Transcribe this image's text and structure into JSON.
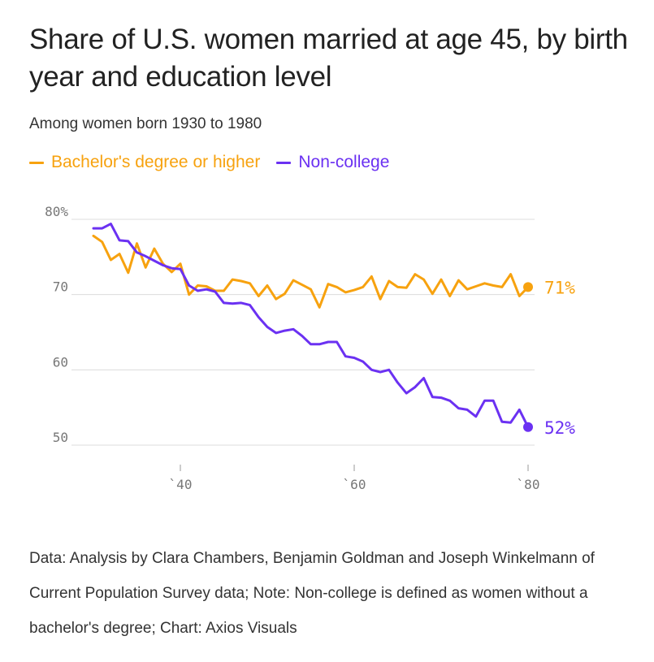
{
  "header": {
    "title": "Share of U.S. women married at age 45, by birth year and education level",
    "subtitle": "Among women born 1930 to 1980"
  },
  "legend": [
    {
      "label": "Bachelor's degree or higher",
      "color": "#f7a20f"
    },
    {
      "label": "Non-college",
      "color": "#6b31f2"
    }
  ],
  "source_note": "Data: Analysis by Clara Chambers, Benjamin Goldman and Joseph Winkelmann of Current Population Survey data; Note: Non-college is defined as women without a bachelor's degree; Chart: Axios Visuals",
  "chart_data": {
    "type": "line",
    "title": "Share of U.S. women married at age 45, by birth year and education level",
    "xlabel": "",
    "ylabel": "",
    "xlim": [
      1930,
      1980
    ],
    "ylim": [
      48,
      82
    ],
    "y_ticks": [
      {
        "value": 50,
        "label": "50"
      },
      {
        "value": 60,
        "label": "60"
      },
      {
        "value": 70,
        "label": "70"
      },
      {
        "value": 80,
        "label": "80%"
      }
    ],
    "x_ticks": [
      {
        "value": 1940,
        "label": "`40"
      },
      {
        "value": 1960,
        "label": "`60"
      },
      {
        "value": 1980,
        "label": "`80"
      }
    ],
    "grid": true,
    "series": [
      {
        "name": "Bachelor's degree or higher",
        "color": "#f7a20f",
        "end_label": "71%",
        "x": [
          1930,
          1931,
          1932,
          1933,
          1934,
          1935,
          1936,
          1937,
          1938,
          1939,
          1940,
          1941,
          1942,
          1943,
          1944,
          1945,
          1946,
          1947,
          1948,
          1949,
          1950,
          1951,
          1952,
          1953,
          1954,
          1955,
          1956,
          1957,
          1958,
          1959,
          1960,
          1961,
          1962,
          1963,
          1964,
          1965,
          1966,
          1967,
          1968,
          1969,
          1970,
          1971,
          1972,
          1973,
          1974,
          1975,
          1976,
          1977,
          1978,
          1979,
          1980
        ],
        "values": [
          77.8,
          77.0,
          74.6,
          75.4,
          72.9,
          76.8,
          73.6,
          76.1,
          74.1,
          73.0,
          74.1,
          70.0,
          71.2,
          71.1,
          70.5,
          70.5,
          72.0,
          71.8,
          71.5,
          69.8,
          71.2,
          69.4,
          70.1,
          71.9,
          71.3,
          70.7,
          68.3,
          71.4,
          71.0,
          70.3,
          70.6,
          71.0,
          72.4,
          69.4,
          71.8,
          71.0,
          70.9,
          72.7,
          72.0,
          70.1,
          72.0,
          69.8,
          71.9,
          70.7,
          71.1,
          71.5,
          71.2,
          71.0,
          72.7,
          69.8,
          71.0
        ]
      },
      {
        "name": "Non-college",
        "color": "#6b31f2",
        "end_label": "52%",
        "x": [
          1930,
          1931,
          1932,
          1933,
          1934,
          1935,
          1936,
          1937,
          1938,
          1939,
          1940,
          1941,
          1942,
          1943,
          1944,
          1945,
          1946,
          1947,
          1948,
          1949,
          1950,
          1951,
          1952,
          1953,
          1954,
          1955,
          1956,
          1957,
          1958,
          1959,
          1960,
          1961,
          1962,
          1963,
          1964,
          1965,
          1966,
          1967,
          1968,
          1969,
          1970,
          1971,
          1972,
          1973,
          1974,
          1975,
          1976,
          1977,
          1978,
          1979,
          1980
        ],
        "values": [
          78.8,
          78.8,
          79.4,
          77.2,
          77.1,
          75.6,
          75.1,
          74.5,
          73.9,
          73.5,
          73.4,
          71.2,
          70.5,
          70.7,
          70.4,
          68.9,
          68.8,
          68.9,
          68.6,
          67.0,
          65.7,
          64.9,
          65.2,
          65.4,
          64.5,
          63.4,
          63.4,
          63.7,
          63.7,
          61.8,
          61.6,
          61.1,
          60.0,
          59.7,
          60.0,
          58.3,
          56.9,
          57.7,
          58.9,
          56.4,
          56.3,
          55.9,
          54.9,
          54.7,
          53.8,
          55.9,
          55.9,
          53.1,
          53.0,
          54.7,
          52.4
        ]
      }
    ]
  }
}
